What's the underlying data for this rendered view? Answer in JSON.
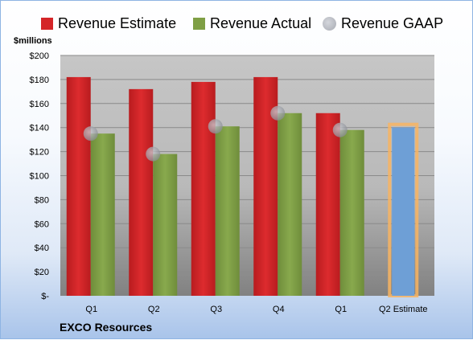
{
  "chart_data": {
    "type": "bar",
    "categories": [
      "Q1",
      "Q2",
      "Q3",
      "Q4",
      "Q1",
      "Q2 Estimate"
    ],
    "series": [
      {
        "name": "Revenue Estimate",
        "color": "#d42528",
        "values": [
          182,
          172,
          178,
          182,
          152,
          null
        ]
      },
      {
        "name": "Revenue Actual",
        "color": "#7f9f45",
        "values": [
          135,
          118,
          141,
          152,
          138,
          null
        ]
      },
      {
        "name": "Revenue GAAP",
        "color": "#a7aab2",
        "values": [
          135,
          118,
          141,
          152,
          138,
          null
        ]
      }
    ],
    "highlight": {
      "category": "Q2 Estimate",
      "value": 140,
      "color": "#6e9fd6",
      "outline": "#f8b462"
    },
    "ylabel": "$millions",
    "ylim": [
      0,
      200
    ],
    "yticks": [
      0,
      20,
      40,
      60,
      80,
      100,
      120,
      140,
      160,
      180,
      200
    ],
    "ytick_labels": [
      "$-",
      "$20",
      "$40",
      "$60",
      "$80",
      "$100",
      "$120",
      "$140",
      "$160",
      "$180",
      "$200"
    ],
    "grid": true,
    "legend_position": "top"
  },
  "footer": {
    "company": "EXCO Resources"
  },
  "legend": {
    "estimate": "Revenue Estimate",
    "actual": "Revenue Actual",
    "gaap": "Revenue GAAP"
  }
}
